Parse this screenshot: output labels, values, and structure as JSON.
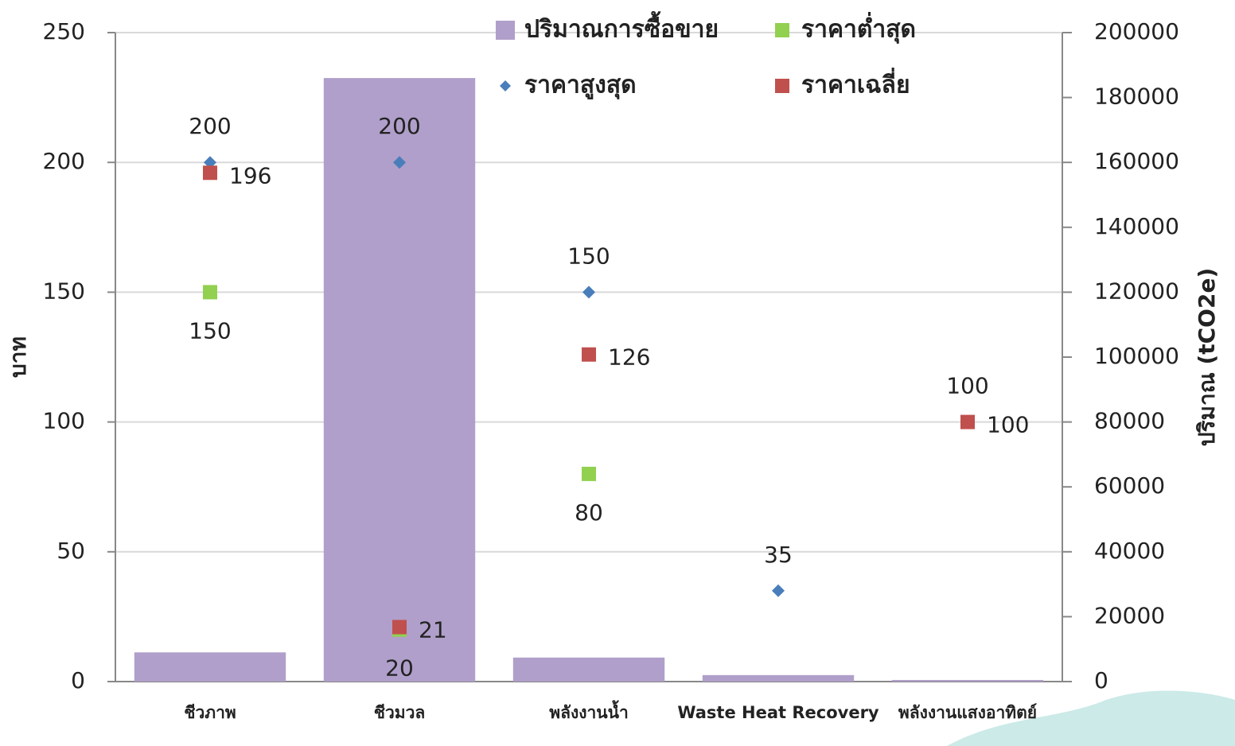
{
  "chart_data": {
    "type": "combo",
    "y_label": "บาท",
    "y2_label": "ปริมาณ (tCO2e)",
    "categories": [
      "ชีวภาพ",
      "ชีวมวล",
      "พลังงานน้ำ",
      "Waste Heat Recovery",
      "พลังงานแสงอาทิตย์"
    ],
    "series": [
      {
        "name": "ปริมาณการซื้อขาย",
        "type": "bar",
        "axis": "y2",
        "color": "#b09fca",
        "values": [
          9000,
          186000,
          7400,
          2000,
          500
        ]
      },
      {
        "name": "ราคาต่ำสุด",
        "type": "scatter",
        "marker": "square",
        "label_position": "bottom",
        "color": "#92d050",
        "values": [
          150,
          20,
          80,
          null,
          null
        ]
      },
      {
        "name": "ราคาสูงสุด",
        "type": "scatter",
        "marker": "diamond",
        "label_position": "top",
        "color": "#4a7ebb",
        "values": [
          200,
          200,
          150,
          35,
          100
        ]
      },
      {
        "name": "ราคาเฉลี่ย",
        "type": "scatter",
        "marker": "square",
        "label_position": "right",
        "color": "#c0504d",
        "values": [
          196,
          21,
          126,
          null,
          100
        ]
      }
    ],
    "ylim": [
      0,
      250
    ],
    "yticks": [
      0,
      50,
      100,
      150,
      200,
      250
    ],
    "y2lim": [
      0,
      200000
    ],
    "y2ticks": [
      0,
      20000,
      40000,
      60000,
      80000,
      100000,
      120000,
      140000,
      160000,
      180000,
      200000
    ],
    "grid": true
  }
}
